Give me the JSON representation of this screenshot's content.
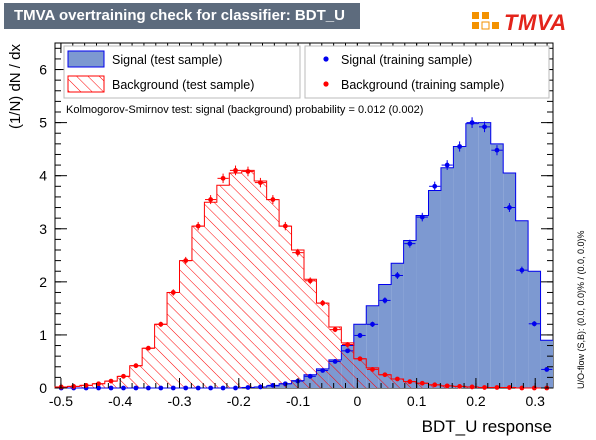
{
  "title": "TMVA overtraining check for classifier: BDT_U",
  "logo_text": "TMVA",
  "ks_text": "Kolmogorov-Smirnov test: signal (background) probability = 0.012 (0.002)",
  "overflow_text": "U/O-flow (S,B): (0.0, 0.0)% / (0.0, 0.0)%",
  "legend": {
    "signal_test": "Signal (test sample)",
    "background_test": "Background (test sample)",
    "signal_train": "Signal (training sample)",
    "background_train": "Background (training sample)"
  },
  "colors": {
    "signal_fill": "#7d99d1",
    "signal_line": "#0000ee",
    "background_line": "#ff0000",
    "title_bg": "#5d6b7d"
  },
  "chart_data": {
    "type": "bar",
    "xlabel": "BDT_U response",
    "ylabel": "(1/N) dN / dx",
    "xlim": [
      -0.51,
      0.33
    ],
    "ylim": [
      0,
      6.5
    ],
    "x_ticks": [
      -0.5,
      -0.4,
      -0.3,
      -0.2,
      -0.1,
      0,
      0.1,
      0.2,
      0.3
    ],
    "x_tick_labels": [
      "-0.5",
      "-0.4",
      "-0.3",
      "-0.2",
      "-0.1",
      "0",
      "0.1",
      "0.2",
      "0.3"
    ],
    "y_ticks": [
      0,
      1,
      2,
      3,
      4,
      5,
      6
    ],
    "y_tick_labels": [
      "0",
      "1",
      "2",
      "3",
      "4",
      "5",
      "6"
    ],
    "bin_width": 0.021,
    "bin_centers": [
      -0.4995,
      -0.4785,
      -0.4575,
      -0.4365,
      -0.4155,
      -0.3945,
      -0.3735,
      -0.3525,
      -0.3315,
      -0.3105,
      -0.2895,
      -0.2685,
      -0.2475,
      -0.2265,
      -0.2055,
      -0.1845,
      -0.1635,
      -0.1425,
      -0.1215,
      -0.1005,
      -0.0795,
      -0.0585,
      -0.0375,
      -0.0165,
      0.0045,
      0.0255,
      0.0465,
      0.0675,
      0.0885,
      0.1095,
      0.1305,
      0.1515,
      0.1725,
      0.1935,
      0.2145,
      0.2355,
      0.2565,
      0.2775,
      0.2985,
      0.3195
    ],
    "series": [
      {
        "name": "Signal (test sample)",
        "style": "filled-histogram",
        "values": [
          0,
          0,
          0,
          0,
          0,
          0,
          0,
          0,
          0,
          0,
          0,
          0,
          0,
          0,
          0,
          0.01,
          0.02,
          0.04,
          0.08,
          0.14,
          0.25,
          0.36,
          0.53,
          0.8,
          1.2,
          1.55,
          1.95,
          2.35,
          2.78,
          3.25,
          3.72,
          4.15,
          4.55,
          4.98,
          5.0,
          4.6,
          4.05,
          3.15,
          2.2,
          0.9
        ]
      },
      {
        "name": "Background (test sample)",
        "style": "hatched-histogram",
        "values": [
          0.02,
          0.03,
          0.05,
          0.08,
          0.13,
          0.22,
          0.42,
          0.75,
          1.2,
          1.8,
          2.4,
          3.05,
          3.5,
          3.82,
          4.05,
          4.1,
          3.9,
          3.55,
          3.05,
          2.6,
          2.05,
          1.6,
          1.15,
          0.85,
          0.55,
          0.38,
          0.25,
          0.17,
          0.12,
          0.09,
          0.06,
          0.04,
          0.03,
          0.02,
          0.01,
          0.01,
          0.01,
          0,
          0,
          0
        ]
      },
      {
        "name": "Signal (training sample)",
        "style": "markers",
        "values": [
          0,
          0,
          0,
          0,
          0,
          0,
          0,
          0,
          0,
          0,
          0,
          0,
          0,
          0,
          0,
          0.01,
          0.02,
          0.05,
          0.08,
          0.13,
          0.22,
          0.33,
          0.5,
          0.7,
          0.99,
          1.2,
          1.65,
          2.12,
          2.72,
          3.22,
          3.8,
          4.2,
          4.55,
          5.0,
          4.92,
          4.48,
          3.4,
          2.22,
          1.21,
          0.35
        ]
      },
      {
        "name": "Background (training sample)",
        "style": "markers",
        "values": [
          0.02,
          0.03,
          0.05,
          0.08,
          0.13,
          0.22,
          0.42,
          0.75,
          1.2,
          1.8,
          2.4,
          3.05,
          3.55,
          3.95,
          4.1,
          4.08,
          3.87,
          3.55,
          3.05,
          2.55,
          2.02,
          1.6,
          1.1,
          0.82,
          0.55,
          0.35,
          0.25,
          0.17,
          0.12,
          0.09,
          0.06,
          0.04,
          0.03,
          0.02,
          0.01,
          0.01,
          0.01,
          0,
          0,
          0
        ]
      }
    ]
  }
}
